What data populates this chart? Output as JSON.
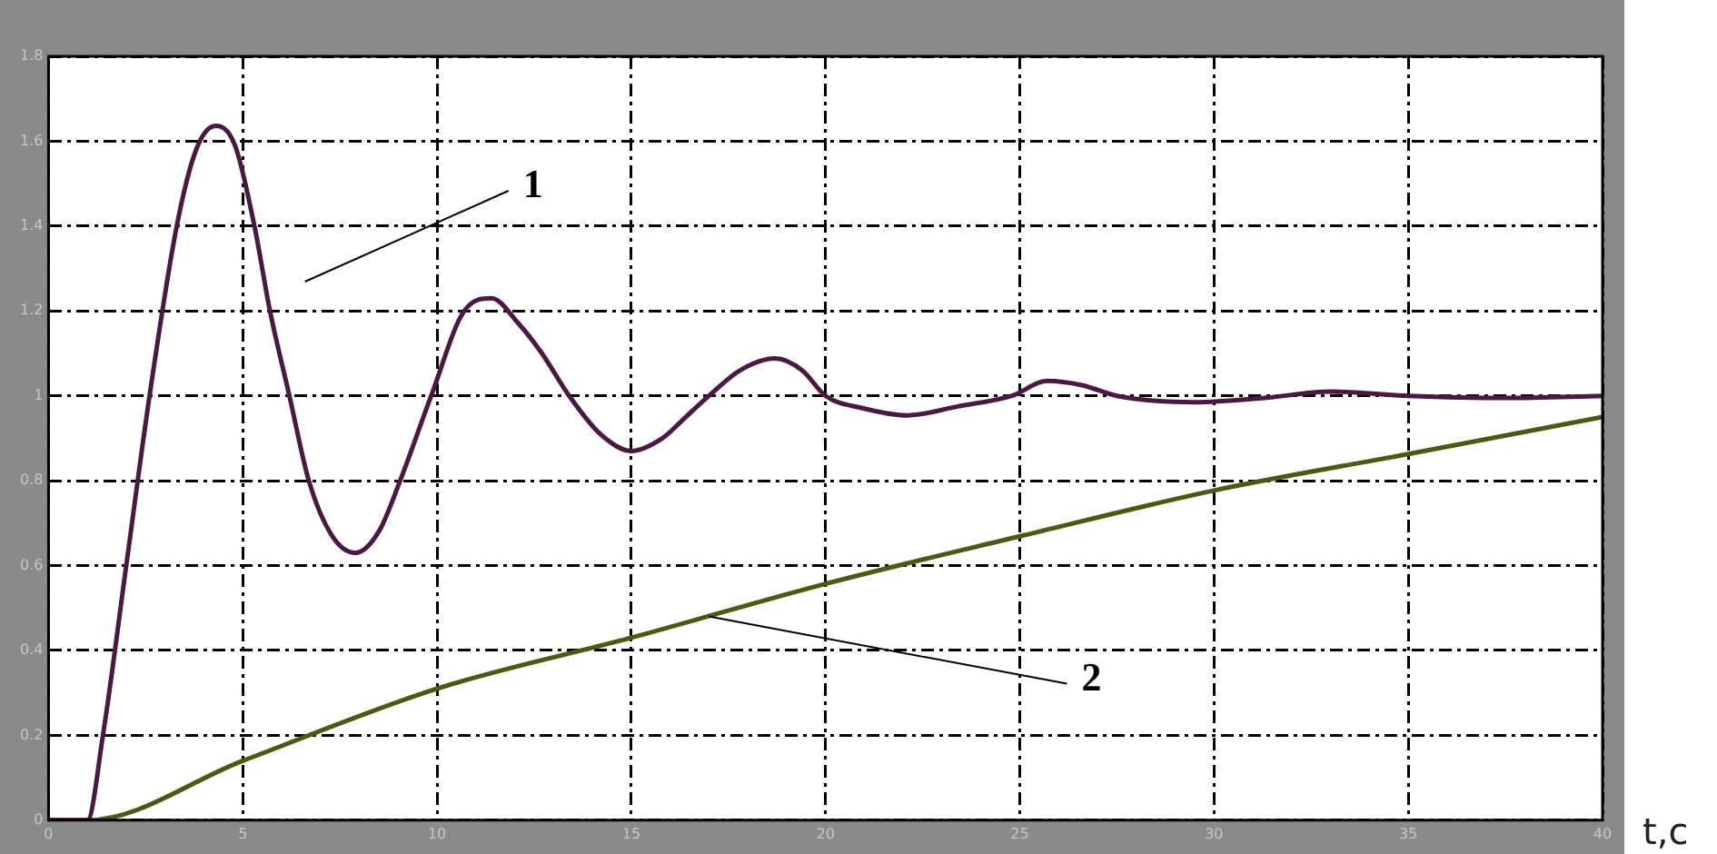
{
  "chart_data": {
    "type": "line",
    "xlabel": "t,c",
    "xlim": [
      0,
      40
    ],
    "xticks": [
      0,
      5,
      10,
      15,
      20,
      25,
      30,
      35,
      40
    ],
    "ylim": [
      0,
      1.8
    ],
    "yticks": [
      0,
      0.2,
      0.4,
      0.6,
      0.8,
      1,
      1.2,
      1.4,
      1.6,
      1.8
    ],
    "grid": true,
    "marker": "none",
    "line_style": "solid",
    "series": [
      {
        "color": "#4a1840",
        "x": [
          0,
          1,
          1.4,
          2,
          2.6,
          3.3,
          3.8,
          4.3,
          4.8,
          5.3,
          5.7,
          6.2,
          6.7,
          7.3,
          7.9,
          8.5,
          9.05,
          9.85,
          10.7,
          11.4,
          12.1,
          12.7,
          13.4,
          14.2,
          15.0,
          15.8,
          16.4,
          17.0,
          17.8,
          18.7,
          19.4,
          20.0,
          21.0,
          22.1,
          23.4,
          24.8,
          25.7,
          26.6,
          27.5,
          29.5,
          31.3,
          33,
          35,
          37.5,
          40
        ],
        "values": [
          0,
          0,
          0.2,
          0.6,
          1.0,
          1.4,
          1.58,
          1.636,
          1.59,
          1.4,
          1.2,
          1.0,
          0.8,
          0.67,
          0.63,
          0.68,
          0.8,
          1.0,
          1.2,
          1.23,
          1.17,
          1.1,
          1.0,
          0.91,
          0.87,
          0.9,
          0.95,
          1.0,
          1.06,
          1.088,
          1.06,
          1.0,
          0.97,
          0.954,
          0.975,
          1.0,
          1.035,
          1.025,
          1.0,
          0.985,
          0.995,
          1.01,
          1.0,
          0.995,
          1.0
        ]
      },
      {
        "color": "#4a5a10",
        "x": [
          0,
          1,
          5,
          10,
          15,
          20,
          25,
          30,
          35,
          40
        ],
        "values": [
          0,
          0,
          0.14,
          0.31,
          0.43,
          0.557,
          0.669,
          0.777,
          0.863,
          0.95
        ]
      }
    ],
    "annotations": [
      "1",
      {
        "text": "2",
        "x": 17,
        "y": 0.48
      }
    ]
  }
}
